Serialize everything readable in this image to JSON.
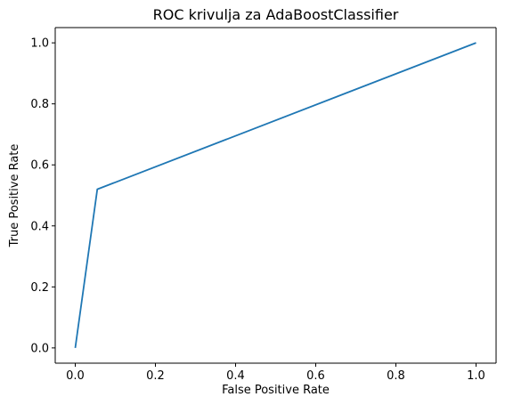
{
  "chart_data": {
    "type": "line",
    "title": "ROC krivulja za AdaBoostClassifier",
    "xlabel": "False Positive Rate",
    "ylabel": "True Positive Rate",
    "xlim": [
      -0.05,
      1.05
    ],
    "ylim": [
      -0.05,
      1.05
    ],
    "xticks": [
      0.0,
      0.2,
      0.4,
      0.6,
      0.8,
      1.0
    ],
    "yticks": [
      0.0,
      0.2,
      0.4,
      0.6,
      0.8,
      1.0
    ],
    "xtick_labels": [
      "0.0",
      "0.2",
      "0.4",
      "0.6",
      "0.8",
      "1.0"
    ],
    "ytick_labels": [
      "0.0",
      "0.2",
      "0.4",
      "0.6",
      "0.8",
      "1.0"
    ],
    "grid": false,
    "series": [
      {
        "color": "#1f77b4",
        "x": [
          0.0,
          0.055,
          1.0
        ],
        "y": [
          0.0,
          0.52,
          1.0
        ]
      }
    ]
  }
}
